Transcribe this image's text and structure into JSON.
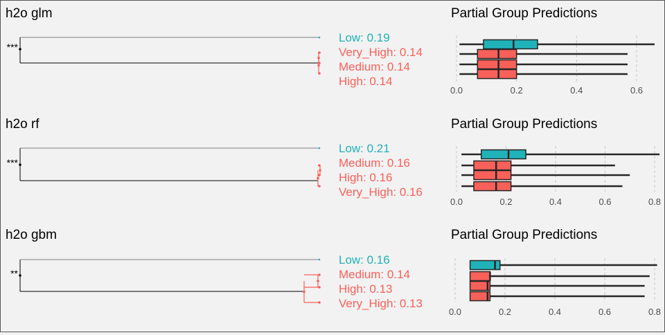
{
  "colors": {
    "low": "#20b2b9",
    "group": "#f8605a",
    "background": "#f2f2f2",
    "tree_black": "#000000",
    "tree_gray": "#7f7f7f",
    "grid": "#c8c8c8",
    "box_outline": "#262626"
  },
  "chart_data": [
    {
      "type": "dendrogram+boxplot",
      "title": "h2o glm",
      "significance": "***",
      "leaves": [
        {
          "group": "Low",
          "value": 0.19,
          "text": "Low: 0.19",
          "color": "low"
        },
        {
          "group": "Very_High",
          "value": 0.14,
          "text": "Very_High: 0.14",
          "color": "group"
        },
        {
          "group": "Medium",
          "value": 0.14,
          "text": "Medium: 0.14",
          "color": "group"
        },
        {
          "group": "High",
          "value": 0.14,
          "text": "High: 0.14",
          "color": "group"
        }
      ],
      "box_title": "Partial Group Predictions",
      "xlim": [
        0,
        0.66
      ],
      "ticks": [
        0.0,
        0.2,
        0.4,
        0.6
      ],
      "tick_labels": [
        "0.0",
        "0.2",
        "0.4",
        "0.6"
      ],
      "boxes": [
        {
          "group": "Low",
          "min": 0.01,
          "q1": 0.09,
          "median": 0.19,
          "q3": 0.27,
          "max": 0.66
        },
        {
          "group": "Very_High",
          "min": 0.01,
          "q1": 0.07,
          "median": 0.14,
          "q3": 0.2,
          "max": 0.57
        },
        {
          "group": "Medium",
          "min": 0.01,
          "q1": 0.07,
          "median": 0.14,
          "q3": 0.2,
          "max": 0.57
        },
        {
          "group": "High",
          "min": 0.01,
          "q1": 0.07,
          "median": 0.14,
          "q3": 0.2,
          "max": 0.57
        }
      ]
    },
    {
      "type": "dendrogram+boxplot",
      "title": "h2o rf",
      "significance": "***",
      "leaves": [
        {
          "group": "Low",
          "value": 0.21,
          "text": "Low: 0.21",
          "color": "low"
        },
        {
          "group": "Medium",
          "value": 0.16,
          "text": "Medium: 0.16",
          "color": "group"
        },
        {
          "group": "High",
          "value": 0.16,
          "text": "High: 0.16",
          "color": "group"
        },
        {
          "group": "Very_High",
          "value": 0.16,
          "text": "Very_High: 0.16",
          "color": "group"
        }
      ],
      "box_title": "Partial Group Predictions",
      "xlim": [
        0,
        0.8
      ],
      "ticks": [
        0.0,
        0.2,
        0.4,
        0.6,
        0.8
      ],
      "tick_labels": [
        "0.0",
        "0.2",
        "0.4",
        "0.6",
        "0.8"
      ],
      "boxes": [
        {
          "group": "Low",
          "min": 0.02,
          "q1": 0.1,
          "median": 0.21,
          "q3": 0.28,
          "max": 0.82
        },
        {
          "group": "Medium",
          "min": 0.02,
          "q1": 0.07,
          "median": 0.16,
          "q3": 0.22,
          "max": 0.64
        },
        {
          "group": "High",
          "min": 0.02,
          "q1": 0.07,
          "median": 0.16,
          "q3": 0.22,
          "max": 0.7
        },
        {
          "group": "Very_High",
          "min": 0.02,
          "q1": 0.07,
          "median": 0.16,
          "q3": 0.22,
          "max": 0.67
        }
      ]
    },
    {
      "type": "dendrogram+boxplot",
      "title": "h2o gbm",
      "significance": "**",
      "leaves": [
        {
          "group": "Low",
          "value": 0.16,
          "text": "Low: 0.16",
          "color": "low"
        },
        {
          "group": "Medium",
          "value": 0.14,
          "text": "Medium: 0.14",
          "color": "group"
        },
        {
          "group": "High",
          "value": 0.13,
          "text": "High: 0.13",
          "color": "group"
        },
        {
          "group": "Very_High",
          "value": 0.13,
          "text": "Very_High: 0.13",
          "color": "group"
        }
      ],
      "box_title": "Partial Group Predictions",
      "xlim": [
        0,
        0.8
      ],
      "ticks": [
        0.0,
        0.2,
        0.4,
        0.6,
        0.8
      ],
      "tick_labels": [
        "0.0",
        "0.2",
        "0.4",
        "0.6",
        "0.8"
      ],
      "boxes": [
        {
          "group": "Low",
          "min": 0.06,
          "q1": 0.06,
          "median": 0.16,
          "q3": 0.18,
          "max": 0.81
        },
        {
          "group": "Medium",
          "min": 0.06,
          "q1": 0.06,
          "median": 0.14,
          "q3": 0.14,
          "max": 0.78
        },
        {
          "group": "High",
          "min": 0.06,
          "q1": 0.06,
          "median": 0.13,
          "q3": 0.14,
          "max": 0.76
        },
        {
          "group": "Very_High",
          "min": 0.06,
          "q1": 0.06,
          "median": 0.13,
          "q3": 0.14,
          "max": 0.76
        }
      ]
    }
  ]
}
